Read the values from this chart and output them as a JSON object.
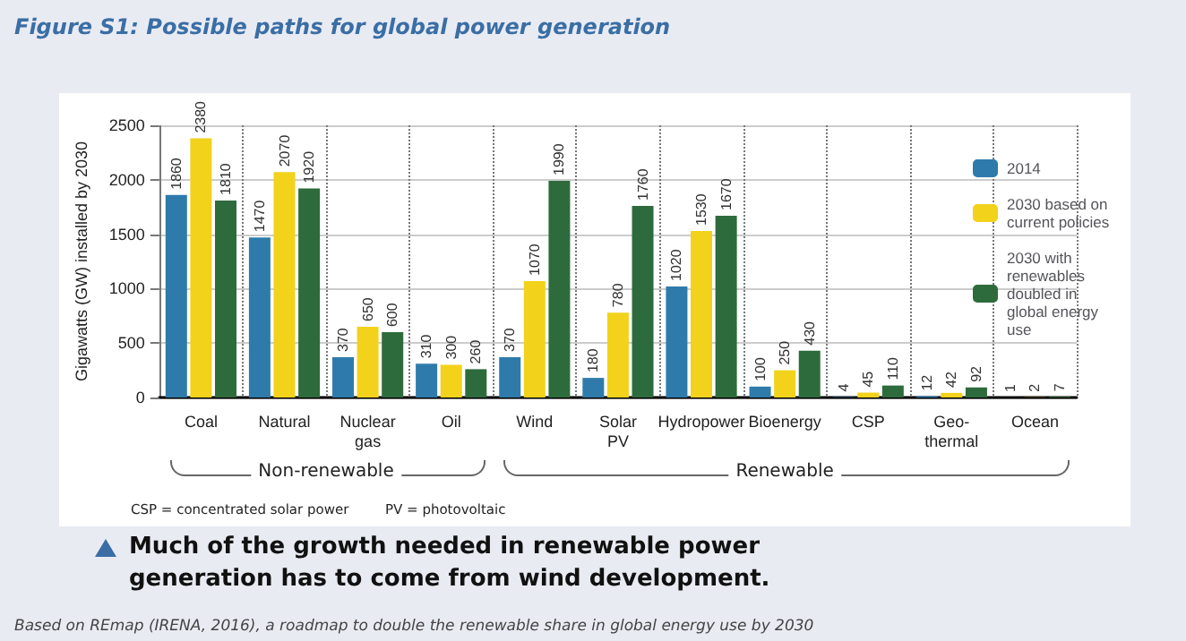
{
  "chart_data": {
    "type": "bar",
    "title": "Figure S1: Possible paths for global power generation",
    "ylabel": "Gigawatts (GW) installed by 2030",
    "categories": [
      "Coal",
      "Natural",
      "Nuclear\ngas",
      "Oil",
      "Wind",
      "Solar\nPV",
      "Hydropower",
      "Bioenergy",
      "CSP",
      "Geo-\nthermal",
      "Ocean"
    ],
    "series": [
      {
        "name": "2014",
        "color": "#2e7bab",
        "values": [
          1860,
          1470,
          370,
          310,
          370,
          180,
          1020,
          100,
          4,
          12,
          1
        ]
      },
      {
        "name": "2030 based on current policies",
        "color": "#f2d21b",
        "values": [
          2380,
          2070,
          650,
          300,
          1070,
          780,
          1530,
          250,
          45,
          42,
          2
        ]
      },
      {
        "name": "2030 with renewables doubled in global energy use",
        "color": "#2e6b3c",
        "values": [
          1810,
          1920,
          600,
          260,
          1990,
          1760,
          1670,
          430,
          110,
          92,
          7
        ]
      }
    ],
    "ylim": [
      0,
      2500
    ],
    "yticks": [
      0,
      500,
      1000,
      1500,
      2000,
      2500
    ],
    "grid": true,
    "legend": "top right",
    "data_labels": true,
    "annotations": [
      "Non-renewable",
      "Renewable",
      "CSP = concentrated solar power",
      "PV = photovoltaic",
      "Much of the growth needed in renewable power generation has to come from wind development.",
      "Based on REmap  (IRENA, 2016), a roadmap to double the renewable share in global energy use by 2030"
    ]
  }
}
